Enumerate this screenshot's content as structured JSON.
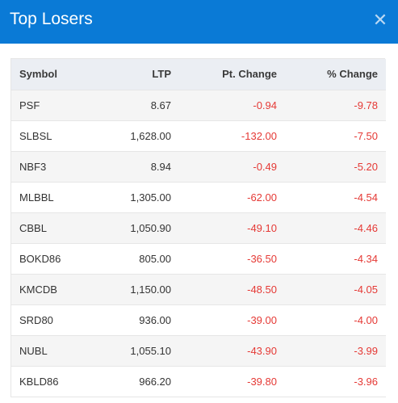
{
  "modal": {
    "title": "Top Losers",
    "close_icon": "close-icon"
  },
  "table": {
    "headers": {
      "symbol": "Symbol",
      "ltp": "LTP",
      "pt_change": "Pt. Change",
      "pct_change": "% Change"
    },
    "rows": [
      {
        "symbol": "PSF",
        "ltp": "8.67",
        "pt_change": "-0.94",
        "pct_change": "-9.78"
      },
      {
        "symbol": "SLBSL",
        "ltp": "1,628.00",
        "pt_change": "-132.00",
        "pct_change": "-7.50"
      },
      {
        "symbol": "NBF3",
        "ltp": "8.94",
        "pt_change": "-0.49",
        "pct_change": "-5.20"
      },
      {
        "symbol": "MLBBL",
        "ltp": "1,305.00",
        "pt_change": "-62.00",
        "pct_change": "-4.54"
      },
      {
        "symbol": "CBBL",
        "ltp": "1,050.90",
        "pt_change": "-49.10",
        "pct_change": "-4.46"
      },
      {
        "symbol": "BOKD86",
        "ltp": "805.00",
        "pt_change": "-36.50",
        "pct_change": "-4.34"
      },
      {
        "symbol": "KMCDB",
        "ltp": "1,150.00",
        "pt_change": "-48.50",
        "pct_change": "-4.05"
      },
      {
        "symbol": "SRD80",
        "ltp": "936.00",
        "pt_change": "-39.00",
        "pct_change": "-4.00"
      },
      {
        "symbol": "NUBL",
        "ltp": "1,055.10",
        "pt_change": "-43.90",
        "pct_change": "-3.99"
      },
      {
        "symbol": "KBLD86",
        "ltp": "966.20",
        "pt_change": "-39.80",
        "pct_change": "-3.96"
      }
    ]
  },
  "colors": {
    "header_bg": "#0a7ad6",
    "negative": "#e53935"
  }
}
